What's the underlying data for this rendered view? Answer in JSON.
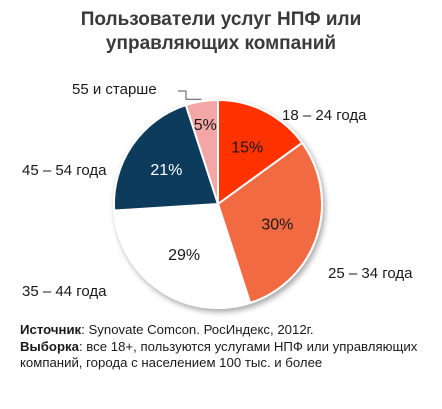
{
  "chart_data": {
    "type": "pie",
    "title": "Пользователи услуг НПФ или управляющих компаний",
    "title_lines": [
      "Пользователи услуг НПФ или",
      "управляющих компаний"
    ],
    "categories": [
      "18 – 24 года",
      "25 – 34 года",
      "35 – 44 года",
      "45 – 54 года",
      "55 и старше"
    ],
    "values": [
      15,
      30,
      29,
      21,
      5
    ],
    "value_labels": [
      "15%",
      "30%",
      "29%",
      "21%",
      "5%"
    ],
    "colors": [
      "#ff3300",
      "#f26b43",
      "#ffffff",
      "#0d3b5c",
      "#f4a6a6"
    ],
    "legend": "none"
  },
  "footer": {
    "source_label": "Источник",
    "source_text": ": Synovate Comcon. РосИндекс, 2012г.",
    "sample_label": "Выборка",
    "sample_text": ": все 18+, пользуются услугами НПФ или управляющих компаний, города с населением 100 тыс. и более"
  }
}
